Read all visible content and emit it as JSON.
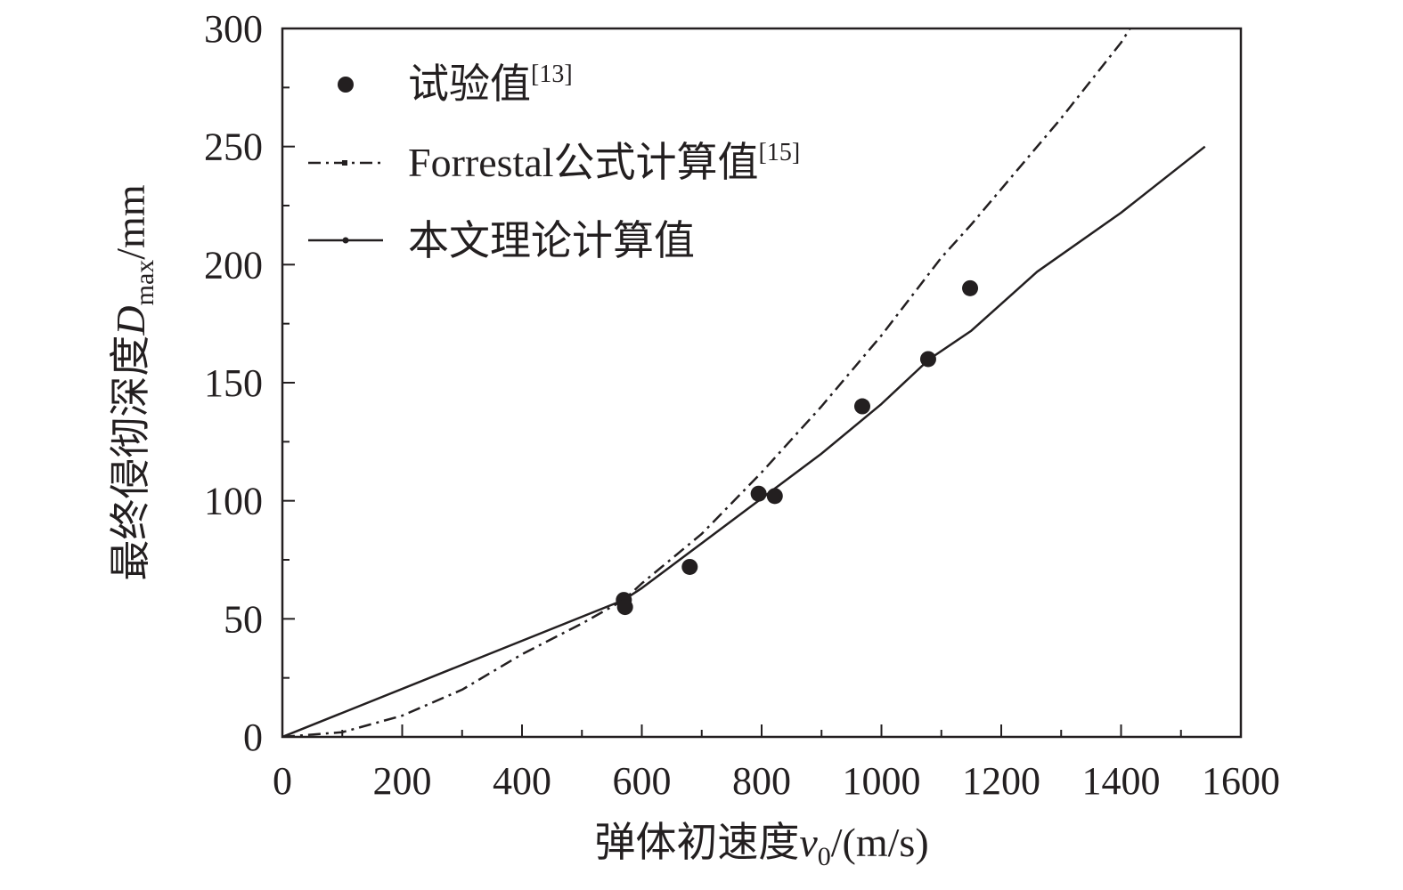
{
  "chart_data": {
    "type": "scatter",
    "xlabel": {
      "text": "弹体初速度",
      "var": "v",
      "sub": "0",
      "unit": "/(m/s)"
    },
    "ylabel": {
      "text": "最终侵彻深度",
      "var": "D",
      "sub": "max",
      "unit": "/mm"
    },
    "xlim": [
      0,
      1600
    ],
    "ylim": [
      0,
      300
    ],
    "x_ticks": [
      0,
      200,
      400,
      600,
      800,
      1000,
      1200,
      1400,
      1600
    ],
    "y_ticks": [
      0,
      50,
      100,
      150,
      200,
      250,
      300
    ],
    "x_tick_labels": [
      "0",
      "200",
      "400",
      "600",
      "800",
      "1000",
      "1200",
      "1400",
      "1600"
    ],
    "y_tick_labels": [
      "0",
      "50",
      "100",
      "150",
      "200",
      "250",
      "300"
    ],
    "grid": false,
    "legend_position": "top-left",
    "series": [
      {
        "name": "试验值",
        "ref": "[13]",
        "kind": "scatter",
        "color": "#231f20",
        "x": [
          570,
          572,
          680,
          795,
          822,
          968,
          1078,
          1148
        ],
        "y": [
          58,
          55,
          72,
          103,
          102,
          140,
          160,
          190
        ]
      },
      {
        "name": "Forrestal公式计算值",
        "ref": "[15]",
        "kind": "line",
        "style": "dash-dot",
        "color": "#231f20",
        "x": [
          0,
          100,
          200,
          300,
          400,
          500,
          570,
          600,
          700,
          800,
          900,
          1000,
          1100,
          1150,
          1200,
          1300,
          1400,
          1420
        ],
        "y": [
          0,
          2,
          9,
          20,
          35,
          48,
          58,
          65,
          86,
          112,
          140,
          170,
          203,
          217,
          232,
          262,
          294,
          302
        ]
      },
      {
        "name": "本文理论计算值",
        "kind": "line",
        "style": "solid",
        "color": "#231f20",
        "x": [
          0,
          570,
          600,
          700,
          800,
          900,
          1000,
          1080,
          1150,
          1260,
          1400,
          1540
        ],
        "y": [
          0,
          58,
          63,
          82,
          101,
          120,
          141,
          160,
          172,
          197,
          222,
          250
        ]
      }
    ]
  }
}
